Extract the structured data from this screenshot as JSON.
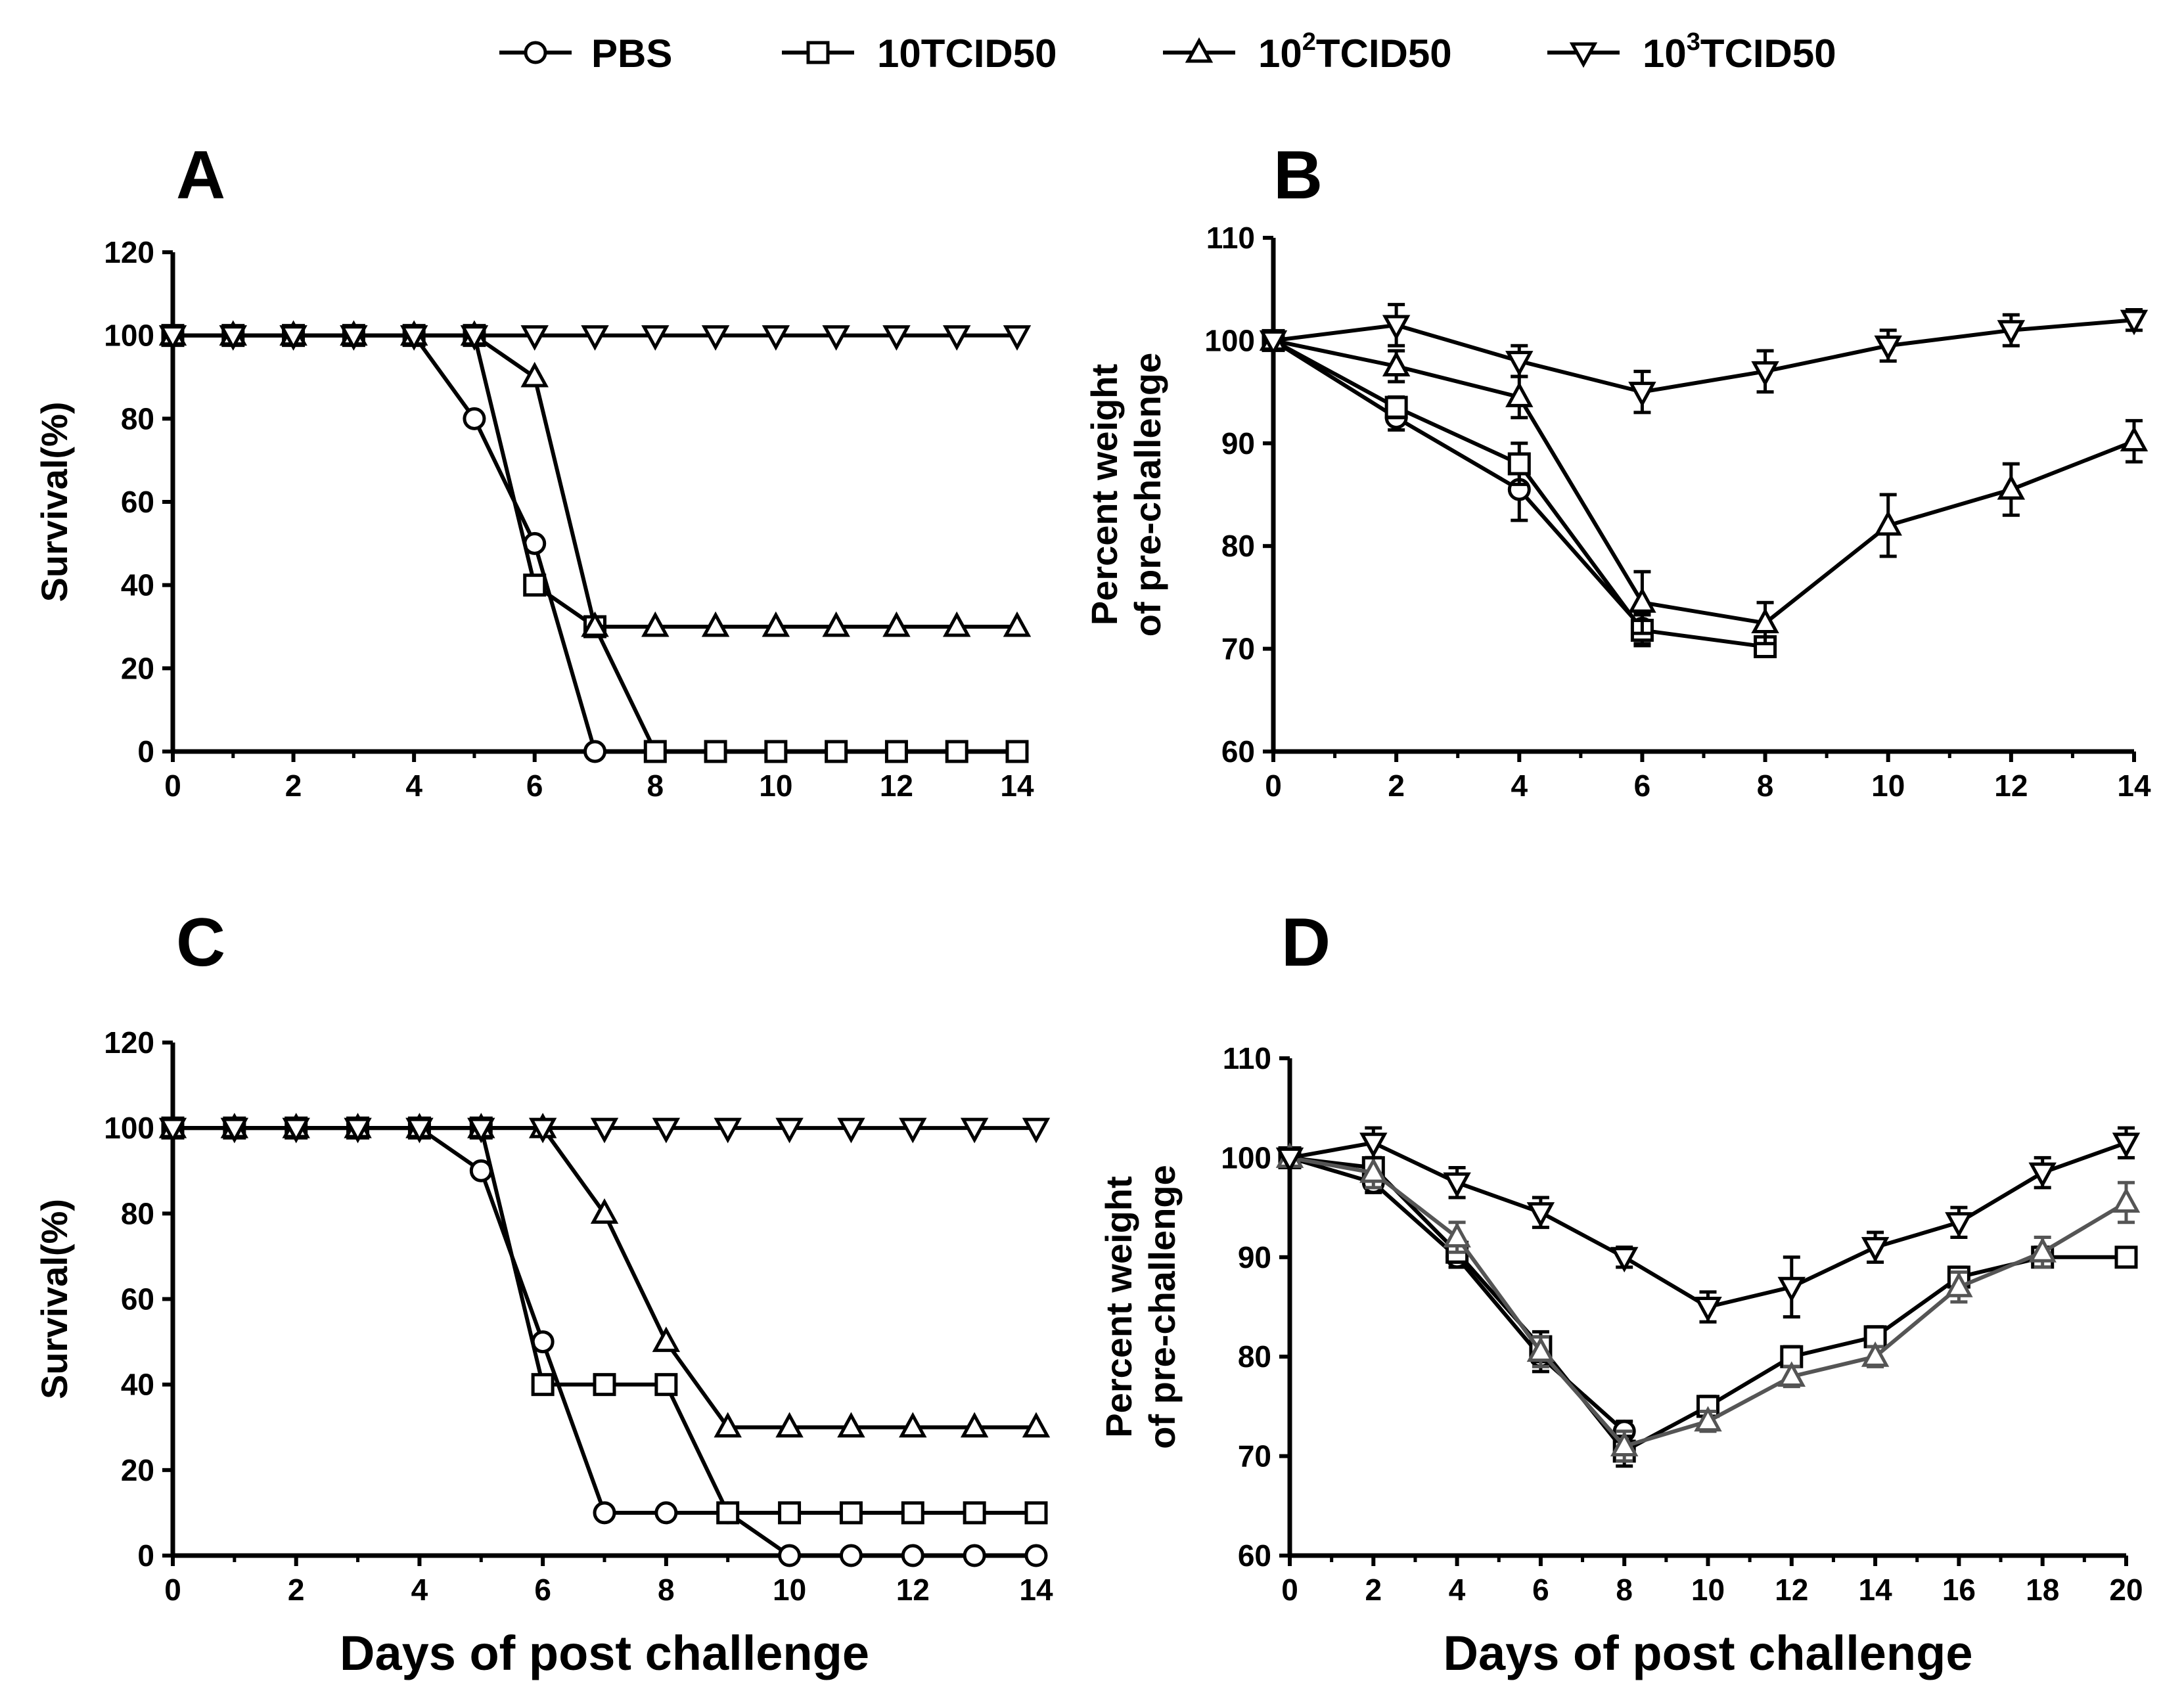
{
  "legend": [
    {
      "key": "pbs",
      "marker": "circle",
      "text": "PBS"
    },
    {
      "key": "t10",
      "marker": "square",
      "text": "10TCID50"
    },
    {
      "key": "t100",
      "marker": "triangle-up",
      "prefix": "10",
      "sup": "2",
      "suffix": "TCID50"
    },
    {
      "key": "t1000",
      "marker": "triangle-down",
      "prefix": "10",
      "sup": "3",
      "suffix": "TCID50"
    }
  ],
  "panels": [
    {
      "letter": "A",
      "ylabel": [
        "Survival(%)"
      ],
      "xlabel": ""
    },
    {
      "letter": "B",
      "ylabel": [
        "Percent weight",
        "of pre-challenge"
      ],
      "xlabel": ""
    },
    {
      "letter": "C",
      "ylabel": [
        "Survival(%)"
      ],
      "xlabel": "Days of post challenge"
    },
    {
      "letter": "D",
      "ylabel": [
        "Percent weight",
        "of pre-challenge"
      ],
      "xlabel": "Days of post challenge"
    }
  ],
  "chart_data": [
    {
      "panel": "A",
      "type": "line",
      "title": "",
      "xlabel": "",
      "ylabel": "Survival(%)",
      "xlim": [
        0,
        14
      ],
      "ylim": [
        0,
        120
      ],
      "xticks": [
        0,
        2,
        4,
        6,
        8,
        10,
        12,
        14
      ],
      "yticks": [
        0,
        20,
        40,
        60,
        80,
        100,
        120
      ],
      "x": [
        0,
        1,
        2,
        3,
        4,
        5,
        6,
        7,
        8,
        9,
        10,
        11,
        12,
        13,
        14
      ],
      "series": [
        {
          "name": "PBS",
          "marker": "circle",
          "values": [
            100,
            100,
            100,
            100,
            100,
            80,
            50,
            0,
            0,
            0,
            0,
            0,
            0,
            0,
            0
          ]
        },
        {
          "name": "10TCID50",
          "marker": "square",
          "values": [
            100,
            100,
            100,
            100,
            100,
            100,
            40,
            30,
            0,
            0,
            0,
            0,
            0,
            0,
            0
          ]
        },
        {
          "name": "10^2TCID50",
          "marker": "triangle-up",
          "values": [
            100,
            100,
            100,
            100,
            100,
            100,
            90,
            30,
            30,
            30,
            30,
            30,
            30,
            30,
            30
          ]
        },
        {
          "name": "10^3TCID50",
          "marker": "triangle-down",
          "values": [
            100,
            100,
            100,
            100,
            100,
            100,
            100,
            100,
            100,
            100,
            100,
            100,
            100,
            100,
            100
          ]
        }
      ]
    },
    {
      "panel": "B",
      "type": "line",
      "title": "",
      "xlabel": "",
      "ylabel": "Percent weight of pre-challenge",
      "xlim": [
        0,
        14
      ],
      "ylim": [
        60,
        110
      ],
      "xticks": [
        0,
        2,
        4,
        6,
        8,
        10,
        12,
        14
      ],
      "yticks": [
        60,
        70,
        80,
        90,
        100,
        110
      ],
      "x": [
        0,
        2,
        4,
        6,
        8,
        10,
        12,
        14
      ],
      "series": [
        {
          "name": "PBS",
          "marker": "circle",
          "values": [
            100,
            92.5,
            85.5,
            72,
            null,
            null,
            null,
            null
          ],
          "errors": [
            0,
            1.2,
            3,
            1.5,
            0,
            0,
            0,
            0
          ]
        },
        {
          "name": "10TCID50",
          "marker": "square",
          "values": [
            100,
            93.5,
            88,
            71.8,
            70.2,
            null,
            null,
            null
          ],
          "errors": [
            0,
            1,
            2,
            1.5,
            0,
            0,
            0,
            0
          ]
        },
        {
          "name": "10^2TCID50",
          "marker": "triangle-up",
          "values": [
            100,
            97.5,
            94.5,
            74.5,
            72.5,
            82,
            85.5,
            90.2
          ],
          "errors": [
            0,
            1.5,
            2,
            3,
            2,
            3,
            2.5,
            2
          ]
        },
        {
          "name": "10^3TCID50",
          "marker": "triangle-down",
          "values": [
            100,
            101.5,
            98,
            95,
            97,
            99.5,
            101,
            102
          ],
          "errors": [
            0,
            2,
            1.5,
            2,
            2,
            1.5,
            1.5,
            1
          ]
        }
      ]
    },
    {
      "panel": "C",
      "type": "line",
      "title": "",
      "xlabel": "Days of post challenge",
      "ylabel": "Survival(%)",
      "xlim": [
        0,
        14
      ],
      "ylim": [
        0,
        120
      ],
      "xticks": [
        0,
        2,
        4,
        6,
        8,
        10,
        12,
        14
      ],
      "yticks": [
        0,
        20,
        40,
        60,
        80,
        100,
        120
      ],
      "x": [
        0,
        1,
        2,
        3,
        4,
        5,
        6,
        7,
        8,
        9,
        10,
        11,
        12,
        13,
        14
      ],
      "series": [
        {
          "name": "PBS",
          "marker": "circle",
          "values": [
            100,
            100,
            100,
            100,
            100,
            90,
            50,
            10,
            10,
            10,
            0,
            0,
            0,
            0,
            0
          ]
        },
        {
          "name": "10TCID50",
          "marker": "square",
          "values": [
            100,
            100,
            100,
            100,
            100,
            100,
            40,
            40,
            40,
            10,
            10,
            10,
            10,
            10,
            10
          ]
        },
        {
          "name": "10^2TCID50",
          "marker": "triangle-up",
          "values": [
            100,
            100,
            100,
            100,
            100,
            100,
            100,
            80,
            50,
            30,
            30,
            30,
            30,
            30,
            30
          ]
        },
        {
          "name": "10^3TCID50",
          "marker": "triangle-down",
          "values": [
            100,
            100,
            100,
            100,
            100,
            100,
            100,
            100,
            100,
            100,
            100,
            100,
            100,
            100,
            100
          ]
        }
      ]
    },
    {
      "panel": "D",
      "type": "line",
      "title": "",
      "xlabel": "Days of post challenge",
      "ylabel": "Percent weight of pre-challenge",
      "xlim": [
        0,
        20
      ],
      "ylim": [
        60,
        110
      ],
      "xticks": [
        0,
        2,
        4,
        6,
        8,
        10,
        12,
        14,
        16,
        18,
        20
      ],
      "yticks": [
        60,
        70,
        80,
        90,
        100,
        110
      ],
      "x": [
        0,
        2,
        4,
        6,
        8,
        10,
        12,
        14,
        16,
        18,
        20
      ],
      "series": [
        {
          "name": "PBS",
          "marker": "circle",
          "values": [
            100,
            97.5,
            90,
            80,
            72.5,
            null,
            null,
            null,
            null,
            null,
            null
          ],
          "errors": [
            0,
            1,
            1,
            1.5,
            1,
            0,
            0,
            0,
            0,
            0,
            0
          ]
        },
        {
          "name": "10TCID50",
          "marker": "square",
          "values": [
            100,
            99,
            90.5,
            81,
            70.5,
            75,
            80,
            82,
            88,
            90,
            90
          ],
          "errors": [
            0,
            1,
            1,
            1.5,
            1.5,
            1,
            1,
            1,
            1,
            1,
            0.5
          ]
        },
        {
          "name": "10^2TCID50",
          "marker": "triangle-up",
          "values": [
            100,
            98.5,
            92,
            80.5,
            71,
            73.5,
            78,
            80,
            87,
            90.5,
            95.5
          ],
          "errors": [
            0,
            1.5,
            1.5,
            1.5,
            1.5,
            1,
            1,
            1,
            1.5,
            1.5,
            2
          ]
        },
        {
          "name": "10^3TCID50",
          "marker": "triangle-down",
          "values": [
            100,
            101.5,
            97.5,
            94.5,
            90,
            85,
            87,
            91,
            93.5,
            98.5,
            101.5
          ],
          "errors": [
            0,
            1.5,
            1.5,
            1.5,
            1,
            1.5,
            3,
            1.5,
            1.5,
            1.5,
            1.5
          ]
        }
      ]
    }
  ]
}
